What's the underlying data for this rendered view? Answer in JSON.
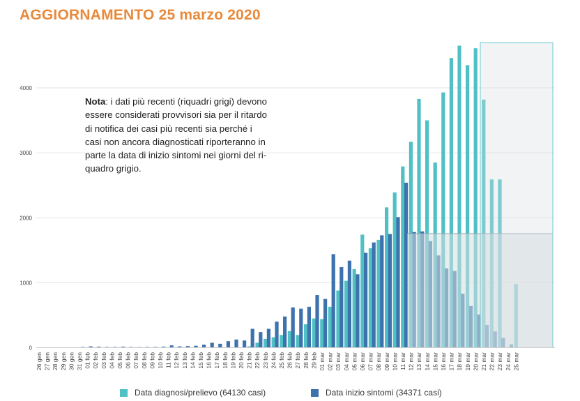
{
  "page": {
    "title": "AGGIORNAMENTO 25 marzo 2020"
  },
  "note": {
    "bold": "Nota",
    "text": ": i dati più recenti (riquadri grigi) devono essere considerati provvisori sia per il ritardo di notifica dei casi più recenti sia perché i casi non ancora diagnosticati riporteranno in parte la data di inizio sintomi nei giorni del ri-quadro grigio."
  },
  "colors": {
    "diagnosi": "#4fc1c4",
    "sintomi": "#3d72ad",
    "grey_box": "#d6dee2",
    "grid": "#e6e6e6"
  },
  "chart_data": {
    "type": "bar",
    "title": "AGGIORNAMENTO 25 marzo 2020",
    "xlabel": "",
    "ylabel": "",
    "ylim": [
      0,
      4800
    ],
    "yticks": [
      0,
      1000,
      2000,
      3000,
      4000
    ],
    "ytick_labels": [
      "0",
      "1000",
      "2000",
      "3000",
      "4000"
    ],
    "grid": true,
    "legend_position": "bottom",
    "categories": [
      "26 gen",
      "27 gen",
      "28 gen",
      "29 gen",
      "30 gen",
      "31 gen",
      "01 feb",
      "02 feb",
      "03 feb",
      "04 feb",
      "05 feb",
      "06 feb",
      "07 feb",
      "08 feb",
      "09 feb",
      "10 feb",
      "11 feb",
      "12 feb",
      "13 feb",
      "14 feb",
      "15 feb",
      "16 feb",
      "17 feb",
      "18 feb",
      "19 feb",
      "20 feb",
      "21 feb",
      "22 feb",
      "23 feb",
      "24 feb",
      "25 feb",
      "26 feb",
      "27 feb",
      "28 feb",
      "29 feb",
      "01 mar",
      "02 mar",
      "03 mar",
      "04 mar",
      "05 mar",
      "06 mar",
      "07 mar",
      "08 mar",
      "09 mar",
      "10 mar",
      "11 mar",
      "12 mar",
      "13 mar",
      "14 mar",
      "15 mar",
      "16 mar",
      "17 mar",
      "18 mar",
      "19 mar",
      "20 mar",
      "21 mar",
      "22 mar",
      "23 mar",
      "24 mar",
      "25 mar"
    ],
    "series": [
      {
        "name": "Data diagnosi/prelievo (64130 casi)",
        "values": [
          0,
          0,
          0,
          2,
          0,
          0,
          0,
          0,
          0,
          0,
          0,
          0,
          0,
          0,
          0,
          0,
          0,
          0,
          0,
          0,
          0,
          0,
          0,
          0,
          0,
          0,
          20,
          75,
          135,
          160,
          195,
          255,
          195,
          360,
          450,
          440,
          630,
          880,
          1030,
          1210,
          1740,
          1530,
          1660,
          2160,
          2390,
          2790,
          3170,
          3830,
          3500,
          2850,
          3930,
          4460,
          4650,
          4350,
          4610,
          3820,
          2590,
          2590,
          0,
          980
        ]
      },
      {
        "name": "Data inizio sintomi (34371 casi)",
        "values": [
          0,
          0,
          0,
          5,
          5,
          10,
          20,
          15,
          10,
          10,
          15,
          10,
          8,
          10,
          10,
          15,
          35,
          20,
          25,
          30,
          45,
          75,
          60,
          100,
          125,
          110,
          290,
          240,
          290,
          400,
          480,
          620,
          600,
          630,
          810,
          750,
          1440,
          1240,
          1340,
          1130,
          1460,
          1620,
          1730,
          1750,
          2010,
          2540,
          1780,
          1790,
          1640,
          1420,
          1220,
          1180,
          830,
          640,
          510,
          350,
          250,
          150,
          50,
          0
        ]
      }
    ]
  },
  "legend": {
    "diagnosi_label": "Data diagnosi/prelievo (64130 casi)",
    "sintomi_label": "Data inizio sintomi (34371 casi)"
  }
}
